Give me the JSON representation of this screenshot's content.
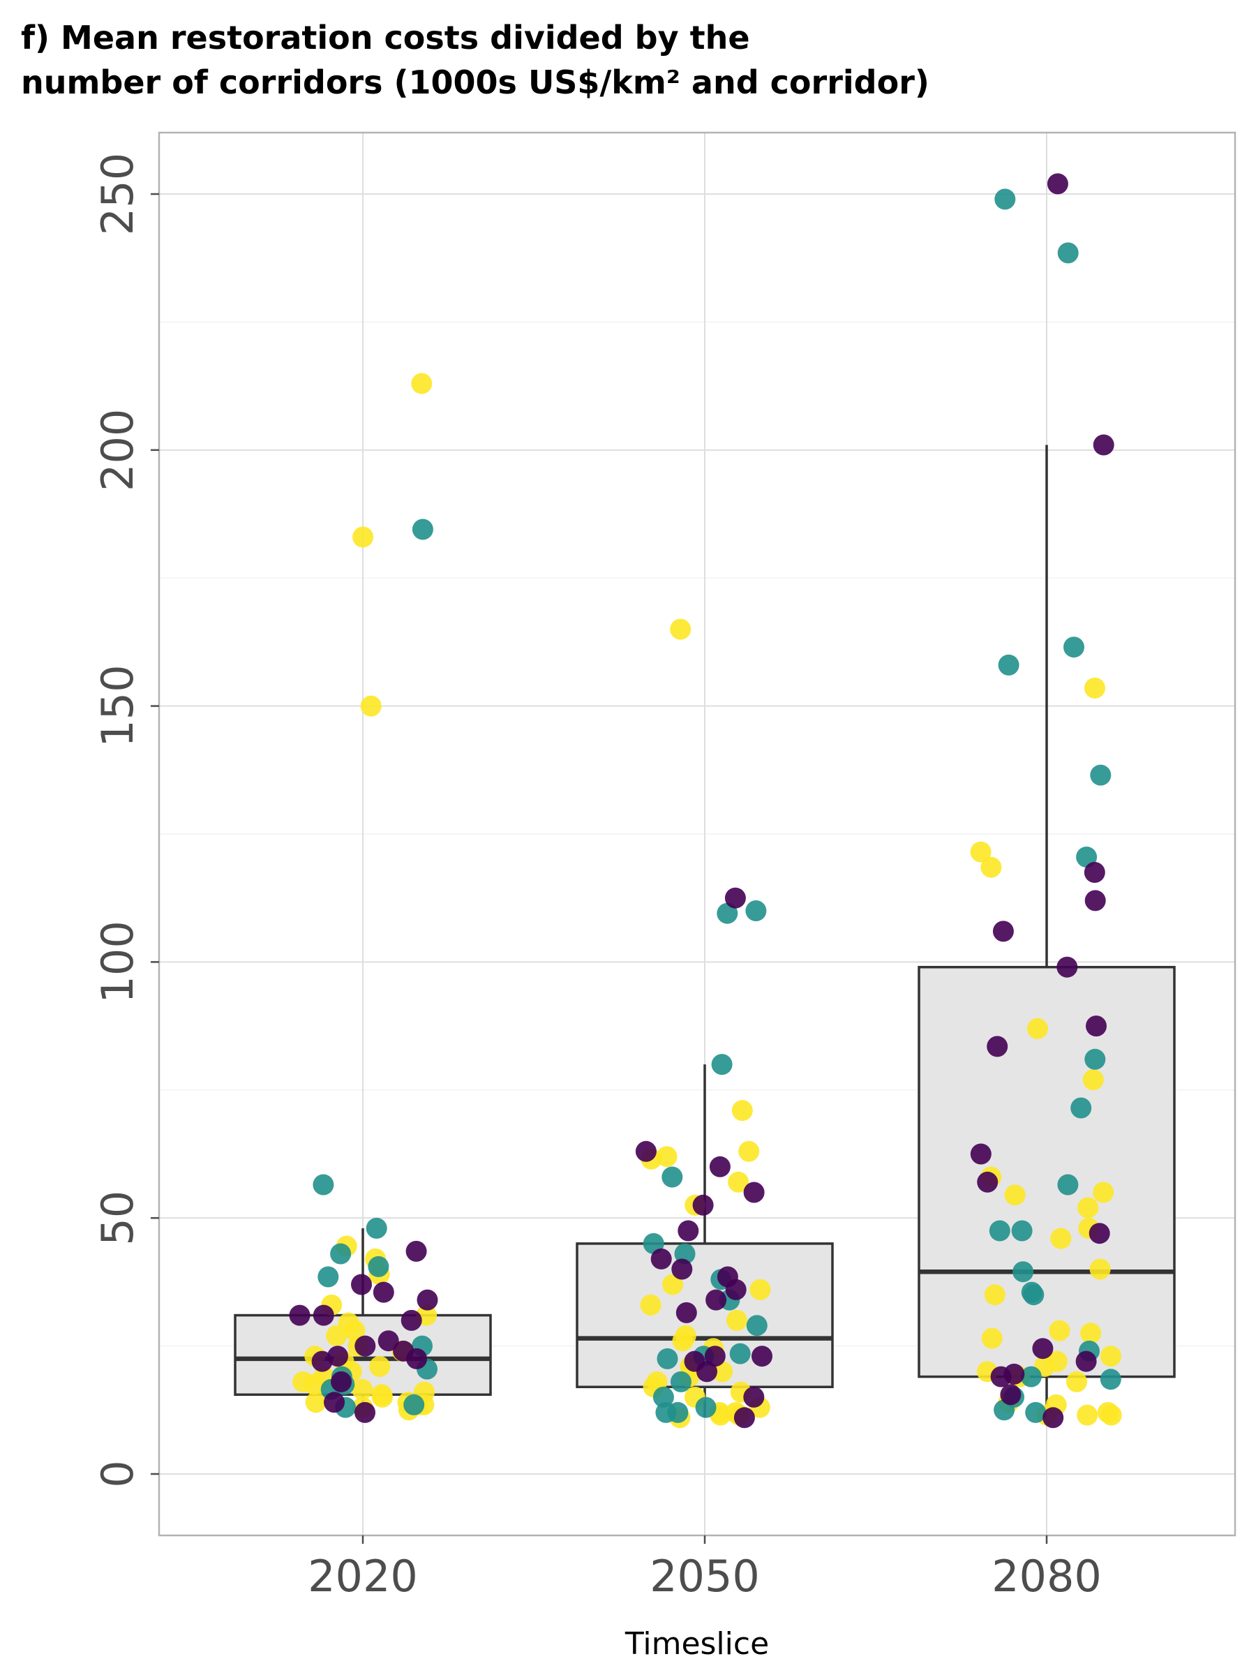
{
  "chart_data": {
    "type": "scatter",
    "title_lines": [
      "f) Mean restoration costs divided by the",
      "number of corridors (1000s US$/km² and corridor)"
    ],
    "xlabel": "Timeslice",
    "ylabel": "",
    "categories": [
      "2020",
      "2050",
      "2080"
    ],
    "ylim": [
      -12,
      262
    ],
    "yticks": [
      0,
      50,
      100,
      150,
      200,
      250
    ],
    "ytick_labels": [
      "0",
      "50",
      "100",
      "150",
      "200",
      "250"
    ],
    "grid": true,
    "legend": "none",
    "colors": {
      "purple": "#440154",
      "teal": "#21908c",
      "yellow": "#fde725",
      "box_fill": "#e5e5e5",
      "box_line": "#333333"
    },
    "boxes": [
      {
        "category": "2020",
        "q1": 15.5,
        "median": 22.5,
        "q3": 31,
        "whisker_low": 13,
        "whisker_high": 48
      },
      {
        "category": "2050",
        "q1": 17,
        "median": 26.5,
        "q3": 45,
        "whisker_low": 11,
        "whisker_high": 80
      },
      {
        "category": "2080",
        "q1": 19,
        "median": 39.5,
        "q3": 99,
        "whisker_low": 11,
        "whisker_high": 201
      }
    ],
    "series": [
      {
        "color": "purple",
        "points": [
          [
            "2020",
            34
          ],
          [
            "2020",
            30
          ],
          [
            "2020",
            25
          ],
          [
            "2020",
            22.5
          ],
          [
            "2020",
            35.5
          ],
          [
            "2020",
            31
          ],
          [
            "2020",
            26
          ],
          [
            "2020",
            23
          ],
          [
            "2020",
            24
          ],
          [
            "2020",
            22
          ],
          [
            "2020",
            37
          ],
          [
            "2020",
            31
          ],
          [
            "2020",
            43.5
          ],
          [
            "2020",
            18
          ],
          [
            "2020",
            14
          ],
          [
            "2020",
            12
          ],
          [
            "2050",
            55
          ],
          [
            "2050",
            40
          ],
          [
            "2050",
            36
          ],
          [
            "2050",
            34
          ],
          [
            "2050",
            23
          ],
          [
            "2050",
            15
          ],
          [
            "2050",
            11
          ],
          [
            "2050",
            47.5
          ],
          [
            "2050",
            60
          ],
          [
            "2050",
            38.5
          ],
          [
            "2050",
            31.5
          ],
          [
            "2050",
            23
          ],
          [
            "2050",
            52.5
          ],
          [
            "2050",
            63
          ],
          [
            "2050",
            112.5
          ],
          [
            "2050",
            42
          ],
          [
            "2050",
            22
          ],
          [
            "2050",
            20
          ],
          [
            "2080",
            252
          ],
          [
            "2080",
            201
          ],
          [
            "2080",
            117.5
          ],
          [
            "2080",
            112
          ],
          [
            "2080",
            106
          ],
          [
            "2080",
            99
          ],
          [
            "2080",
            87.5
          ],
          [
            "2080",
            83.5
          ],
          [
            "2080",
            62.5
          ],
          [
            "2080",
            57
          ],
          [
            "2080",
            47
          ],
          [
            "2080",
            24.5
          ],
          [
            "2080",
            22
          ],
          [
            "2080",
            19.5
          ],
          [
            "2080",
            19
          ],
          [
            "2080",
            15.5
          ],
          [
            "2080",
            11
          ]
        ]
      },
      {
        "color": "teal",
        "points": [
          [
            "2020",
            184.5
          ],
          [
            "2020",
            56.5
          ],
          [
            "2020",
            48
          ],
          [
            "2020",
            43
          ],
          [
            "2020",
            40.5
          ],
          [
            "2020",
            38.5
          ],
          [
            "2020",
            25
          ],
          [
            "2020",
            20.5
          ],
          [
            "2020",
            19
          ],
          [
            "2020",
            17.5
          ],
          [
            "2020",
            16.5
          ],
          [
            "2020",
            13
          ],
          [
            "2020",
            13.5
          ],
          [
            "2050",
            110
          ],
          [
            "2050",
            109.5
          ],
          [
            "2050",
            80
          ],
          [
            "2050",
            58
          ],
          [
            "2050",
            45
          ],
          [
            "2050",
            43
          ],
          [
            "2050",
            38
          ],
          [
            "2050",
            34
          ],
          [
            "2050",
            29
          ],
          [
            "2050",
            23.5
          ],
          [
            "2050",
            23
          ],
          [
            "2050",
            22.5
          ],
          [
            "2050",
            18
          ],
          [
            "2050",
            15
          ],
          [
            "2050",
            13
          ],
          [
            "2050",
            12
          ],
          [
            "2050",
            12
          ],
          [
            "2080",
            249
          ],
          [
            "2080",
            238.5
          ],
          [
            "2080",
            161.5
          ],
          [
            "2080",
            158
          ],
          [
            "2080",
            136.5
          ],
          [
            "2080",
            120.5
          ],
          [
            "2080",
            81
          ],
          [
            "2080",
            71.5
          ],
          [
            "2080",
            56.5
          ],
          [
            "2080",
            47.5
          ],
          [
            "2080",
            47.5
          ],
          [
            "2080",
            39.5
          ],
          [
            "2080",
            35.5
          ],
          [
            "2080",
            35
          ],
          [
            "2080",
            24
          ],
          [
            "2080",
            19
          ],
          [
            "2080",
            18.5
          ],
          [
            "2080",
            15
          ],
          [
            "2080",
            12.5
          ],
          [
            "2080",
            12
          ]
        ]
      },
      {
        "color": "yellow",
        "points": [
          [
            "2020",
            213
          ],
          [
            "2020",
            183
          ],
          [
            "2020",
            150
          ],
          [
            "2020",
            44.5
          ],
          [
            "2020",
            42
          ],
          [
            "2020",
            39
          ],
          [
            "2020",
            33
          ],
          [
            "2020",
            31
          ],
          [
            "2020",
            29.5
          ],
          [
            "2020",
            28
          ],
          [
            "2020",
            27
          ],
          [
            "2020",
            25
          ],
          [
            "2020",
            24
          ],
          [
            "2020",
            23
          ],
          [
            "2020",
            22
          ],
          [
            "2020",
            21
          ],
          [
            "2020",
            20
          ],
          [
            "2020",
            19
          ],
          [
            "2020",
            18
          ],
          [
            "2020",
            17.5
          ],
          [
            "2020",
            16.5
          ],
          [
            "2020",
            15.5
          ],
          [
            "2020",
            15
          ],
          [
            "2020",
            14
          ],
          [
            "2020",
            13.5
          ],
          [
            "2020",
            13
          ],
          [
            "2020",
            13.5
          ],
          [
            "2020",
            14
          ],
          [
            "2020",
            12.5
          ],
          [
            "2020",
            16
          ],
          [
            "2050",
            165
          ],
          [
            "2050",
            71
          ],
          [
            "2050",
            63
          ],
          [
            "2050",
            62
          ],
          [
            "2050",
            61.5
          ],
          [
            "2050",
            57
          ],
          [
            "2050",
            52.5
          ],
          [
            "2050",
            37
          ],
          [
            "2050",
            36
          ],
          [
            "2050",
            33
          ],
          [
            "2050",
            30
          ],
          [
            "2050",
            27
          ],
          [
            "2050",
            26
          ],
          [
            "2050",
            24.5
          ],
          [
            "2050",
            21
          ],
          [
            "2050",
            20
          ],
          [
            "2050",
            19
          ],
          [
            "2050",
            18
          ],
          [
            "2050",
            17
          ],
          [
            "2050",
            16
          ],
          [
            "2050",
            15
          ],
          [
            "2050",
            13
          ],
          [
            "2050",
            12
          ],
          [
            "2050",
            11.5
          ],
          [
            "2050",
            11.5
          ],
          [
            "2050",
            12
          ],
          [
            "2050",
            11
          ],
          [
            "2080",
            153.5
          ],
          [
            "2080",
            121.5
          ],
          [
            "2080",
            118.5
          ],
          [
            "2080",
            87
          ],
          [
            "2080",
            77
          ],
          [
            "2080",
            58
          ],
          [
            "2080",
            55
          ],
          [
            "2080",
            54.5
          ],
          [
            "2080",
            52
          ],
          [
            "2080",
            48
          ],
          [
            "2080",
            46
          ],
          [
            "2080",
            40
          ],
          [
            "2080",
            35
          ],
          [
            "2080",
            28
          ],
          [
            "2080",
            27.5
          ],
          [
            "2080",
            26.5
          ],
          [
            "2080",
            23
          ],
          [
            "2080",
            22
          ],
          [
            "2080",
            21
          ],
          [
            "2080",
            20
          ],
          [
            "2080",
            19
          ],
          [
            "2080",
            18
          ],
          [
            "2080",
            14
          ],
          [
            "2080",
            13.5
          ],
          [
            "2080",
            12
          ],
          [
            "2080",
            11.5
          ],
          [
            "2080",
            11.5
          ],
          [
            "2080",
            11.5
          ]
        ]
      }
    ]
  }
}
